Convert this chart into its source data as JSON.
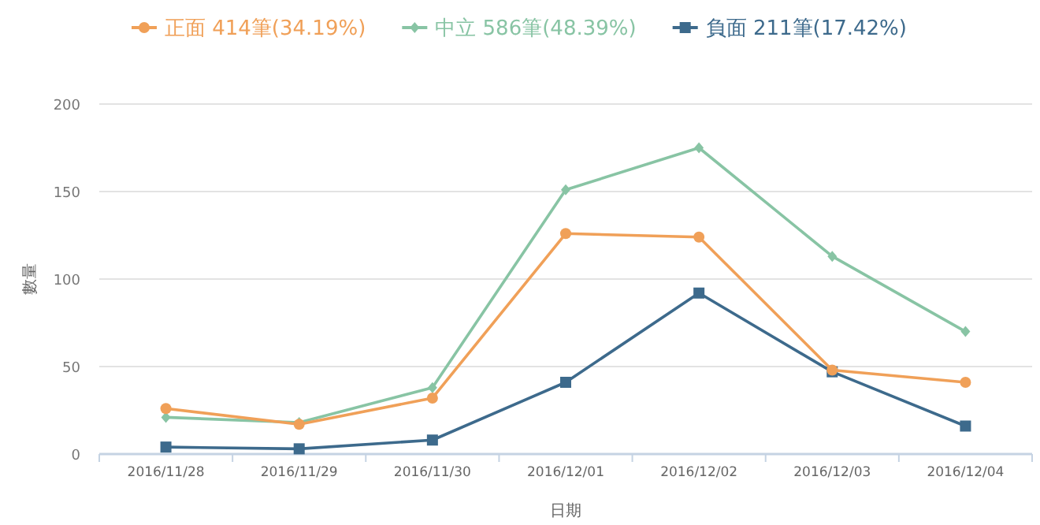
{
  "chart_data": {
    "type": "line",
    "xlabel": "日期",
    "ylabel": "數量",
    "categories": [
      "2016/11/28",
      "2016/11/29",
      "2016/11/30",
      "2016/12/01",
      "2016/12/02",
      "2016/12/03",
      "2016/12/04"
    ],
    "series": [
      {
        "name": "正面 414筆(34.19%)",
        "color": "#f0a058",
        "marker": "circle",
        "values": [
          26,
          17,
          32,
          126,
          124,
          48,
          41
        ]
      },
      {
        "name": "中立 586筆(48.39%)",
        "color": "#88c4a4",
        "marker": "diamond",
        "values": [
          21,
          18,
          38,
          151,
          175,
          113,
          70
        ]
      },
      {
        "name": "負面 211筆(17.42%)",
        "color": "#3d6a8c",
        "marker": "square",
        "values": [
          4,
          3,
          8,
          41,
          92,
          47,
          16
        ]
      }
    ],
    "ylim": [
      0,
      200
    ],
    "yticks": [
      0,
      50,
      100,
      150,
      200
    ],
    "grid": "y",
    "legend": "top"
  }
}
